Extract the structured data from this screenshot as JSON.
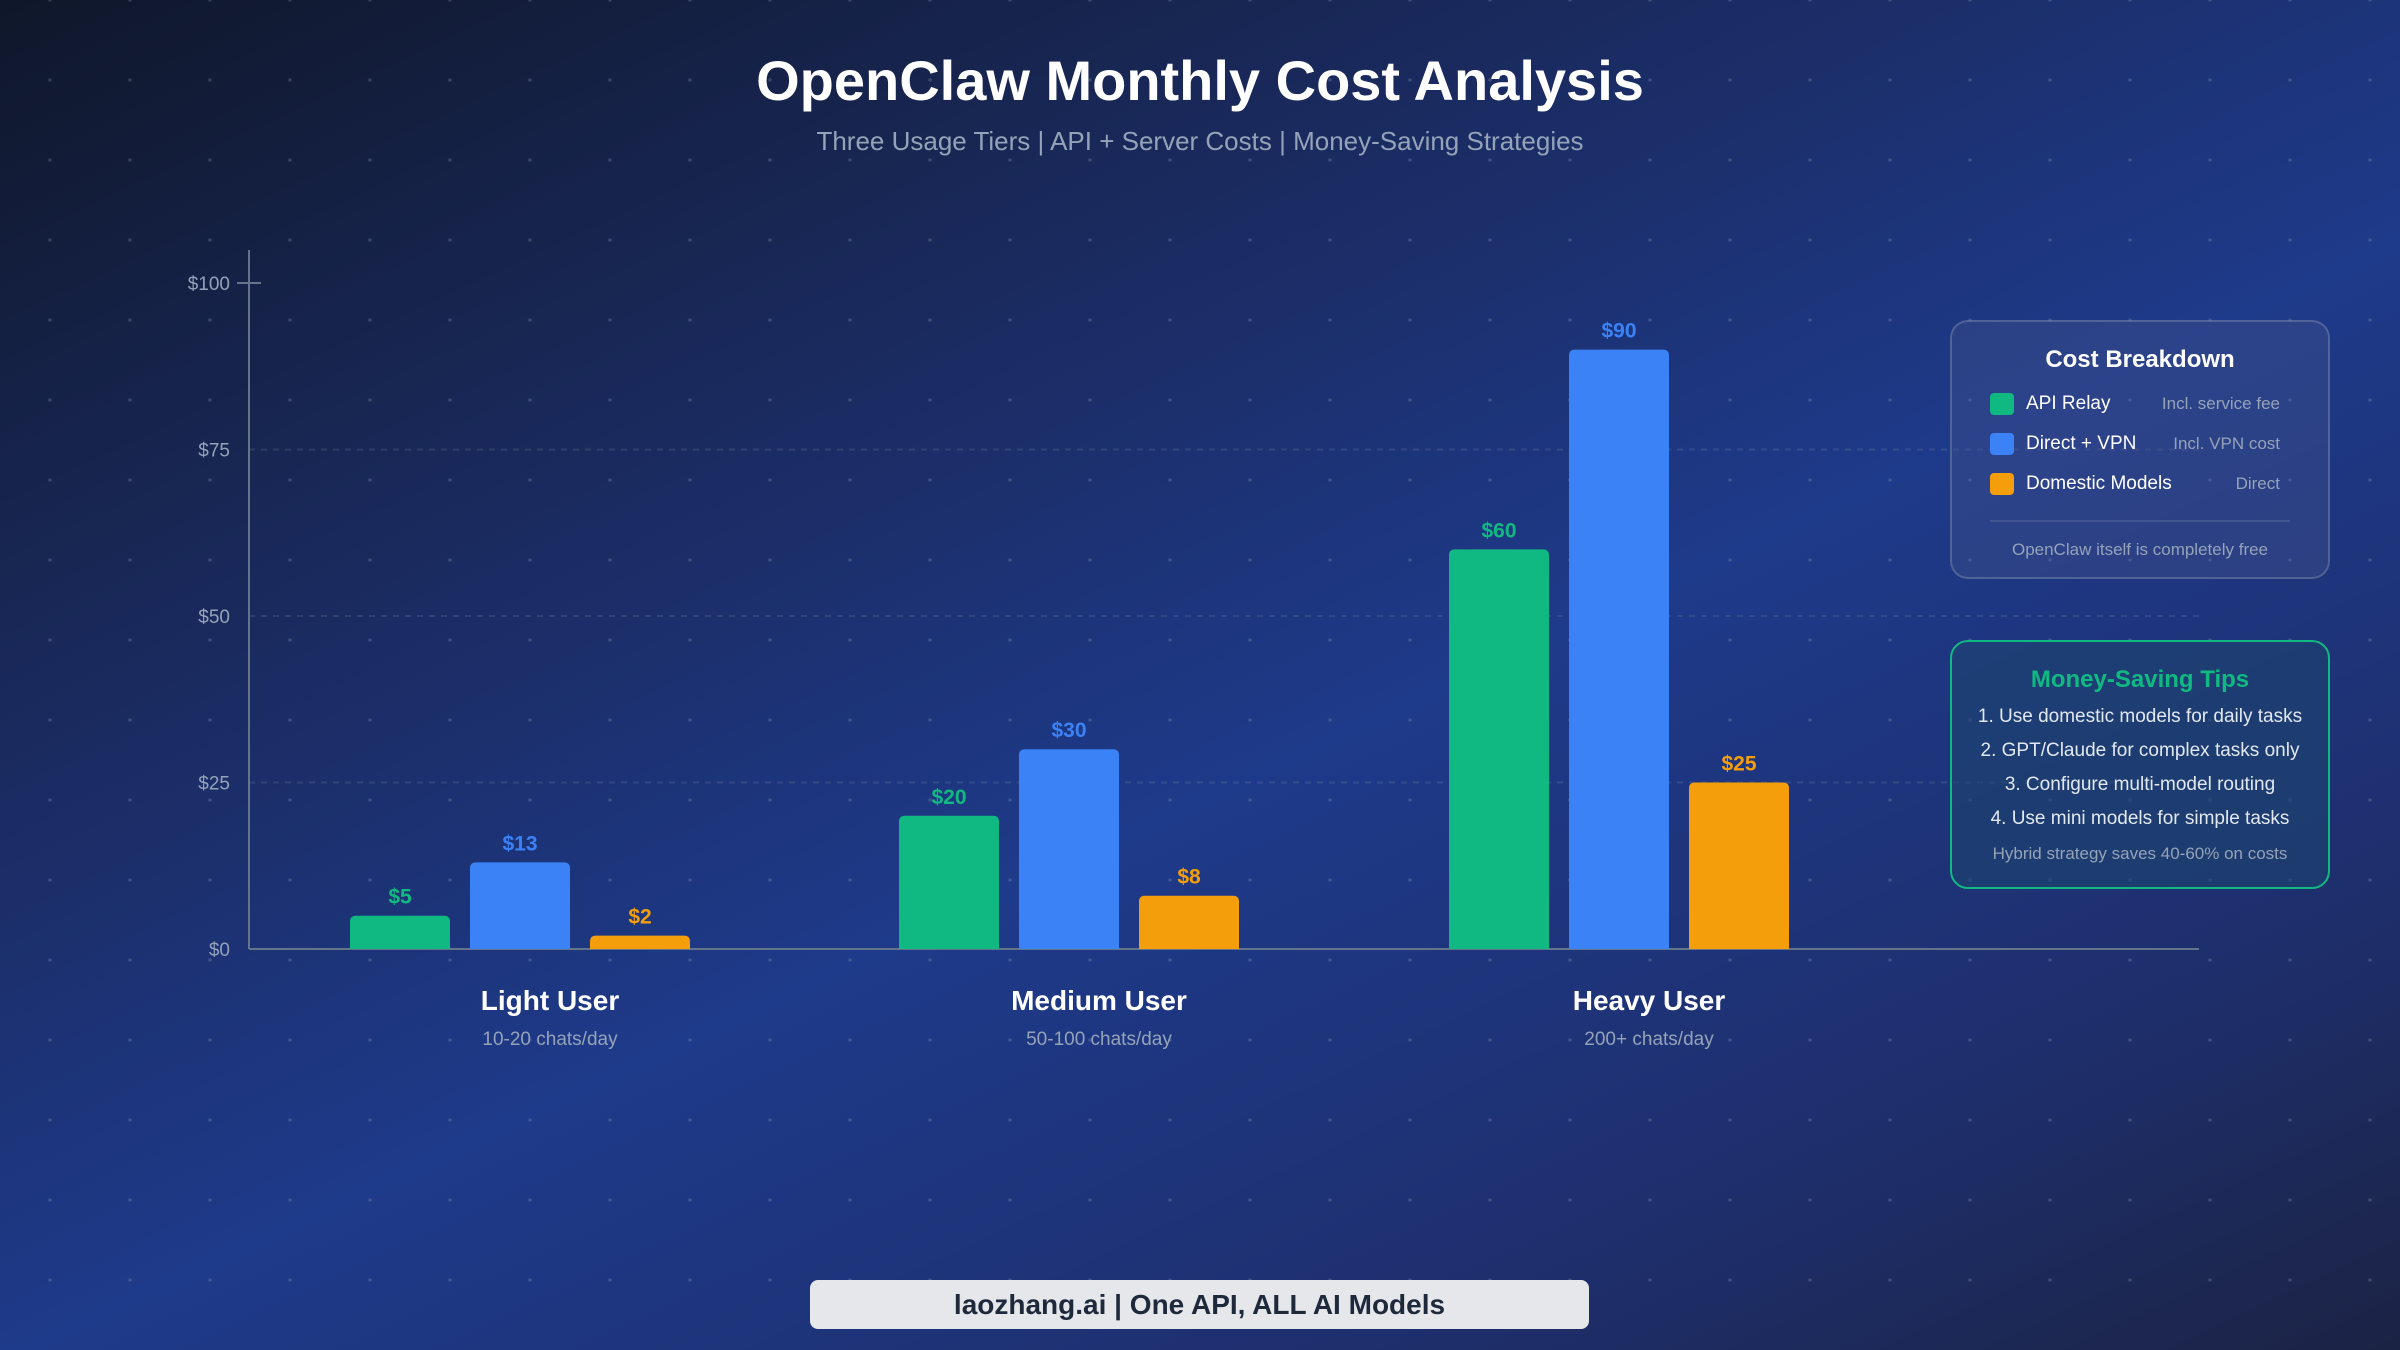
{
  "chart_data": {
    "type": "bar",
    "title": "OpenClaw Monthly Cost Analysis",
    "subtitle": "Three Usage Tiers | API + Server Costs | Money-Saving Strategies",
    "categories": [
      "Light User",
      "Medium User",
      "Heavy User"
    ],
    "category_subtitles": [
      "10-20 chats/day",
      "50-100 chats/day",
      "200+ chats/day"
    ],
    "series": [
      {
        "name": "API Relay",
        "color": "#10b981",
        "values": [
          5,
          20,
          60
        ],
        "labels": [
          "$5",
          "$20",
          "$60"
        ]
      },
      {
        "name": "Direct + VPN",
        "color": "#3b82f6",
        "values": [
          13,
          30,
          90
        ],
        "labels": [
          "$13",
          "$30",
          "$90"
        ]
      },
      {
        "name": "Domestic Models",
        "color": "#f59e0b",
        "values": [
          2,
          8,
          25
        ],
        "labels": [
          "$2",
          "$8",
          "$25"
        ]
      }
    ],
    "yticks": [
      "$0",
      "$25",
      "$50",
      "$75",
      "$100"
    ],
    "ylim": [
      0,
      100
    ],
    "grid": true,
    "legend_position": "right"
  },
  "legend": {
    "title": "Cost Breakdown",
    "items": [
      {
        "label": "API Relay",
        "note": "Incl. service fee",
        "color": "#10b981"
      },
      {
        "label": "Direct + VPN",
        "note": "Incl. VPN cost",
        "color": "#3b82f6"
      },
      {
        "label": "Domestic Models",
        "note": "Direct",
        "color": "#f59e0b"
      }
    ],
    "footnote": "OpenClaw itself is completely free"
  },
  "tips": {
    "title": "Money-Saving Tips",
    "items": [
      "1. Use domestic models for daily tasks",
      "2. GPT/Claude for complex tasks only",
      "3. Configure multi-model routing",
      "4. Use mini models for simple tasks"
    ],
    "summary": "Hybrid strategy saves 40-60% on costs"
  },
  "footer": "laozhang.ai | One API, ALL AI Models"
}
